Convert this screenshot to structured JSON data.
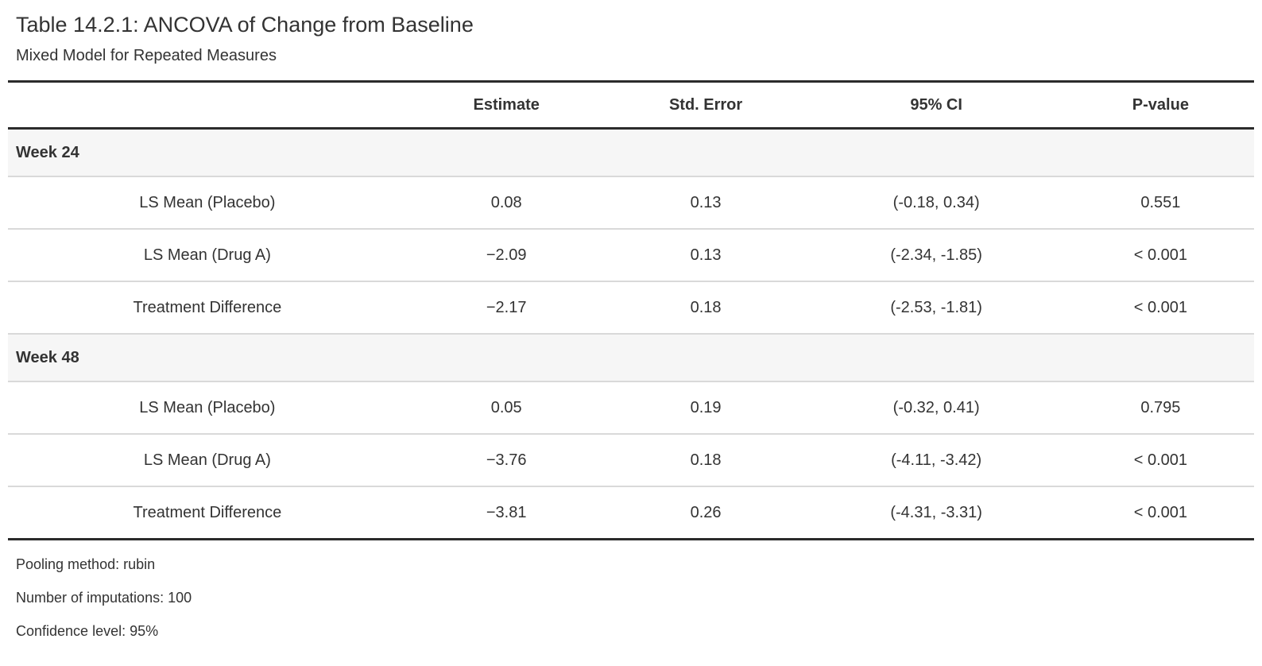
{
  "table": {
    "title": "Table 14.2.1: ANCOVA of Change from Baseline",
    "subtitle": "Mixed Model for Repeated Measures",
    "columns": [
      "",
      "Estimate",
      "Std. Error",
      "95% CI",
      "P-value"
    ],
    "sections": [
      {
        "label": "Week 24",
        "rows": [
          {
            "label": "LS Mean (Placebo)",
            "estimate": "0.08",
            "std_error": "0.13",
            "ci": "(-0.18, 0.34)",
            "p_value": "0.551"
          },
          {
            "label": "LS Mean (Drug A)",
            "estimate": "−2.09",
            "std_error": "0.13",
            "ci": "(-2.34, -1.85)",
            "p_value": "< 0.001"
          },
          {
            "label": "Treatment Difference",
            "estimate": "−2.17",
            "std_error": "0.18",
            "ci": "(-2.53, -1.81)",
            "p_value": "< 0.001"
          }
        ]
      },
      {
        "label": "Week 48",
        "rows": [
          {
            "label": "LS Mean (Placebo)",
            "estimate": "0.05",
            "std_error": "0.19",
            "ci": "(-0.32, 0.41)",
            "p_value": "0.795"
          },
          {
            "label": "LS Mean (Drug A)",
            "estimate": "−3.76",
            "std_error": "0.18",
            "ci": "(-4.11, -3.42)",
            "p_value": "< 0.001"
          },
          {
            "label": "Treatment Difference",
            "estimate": "−3.81",
            "std_error": "0.26",
            "ci": "(-4.31, -3.31)",
            "p_value": "< 0.001"
          }
        ]
      }
    ],
    "footnotes": [
      "Pooling method: rubin",
      "Number of imputations: 100",
      "Confidence level: 95%"
    ]
  },
  "colors": {
    "text": "#333333",
    "heavy_border": "#2b2b2b",
    "light_border": "#d9d9d9",
    "group_row_background": "#f6f6f6",
    "page_background": "#ffffff"
  }
}
